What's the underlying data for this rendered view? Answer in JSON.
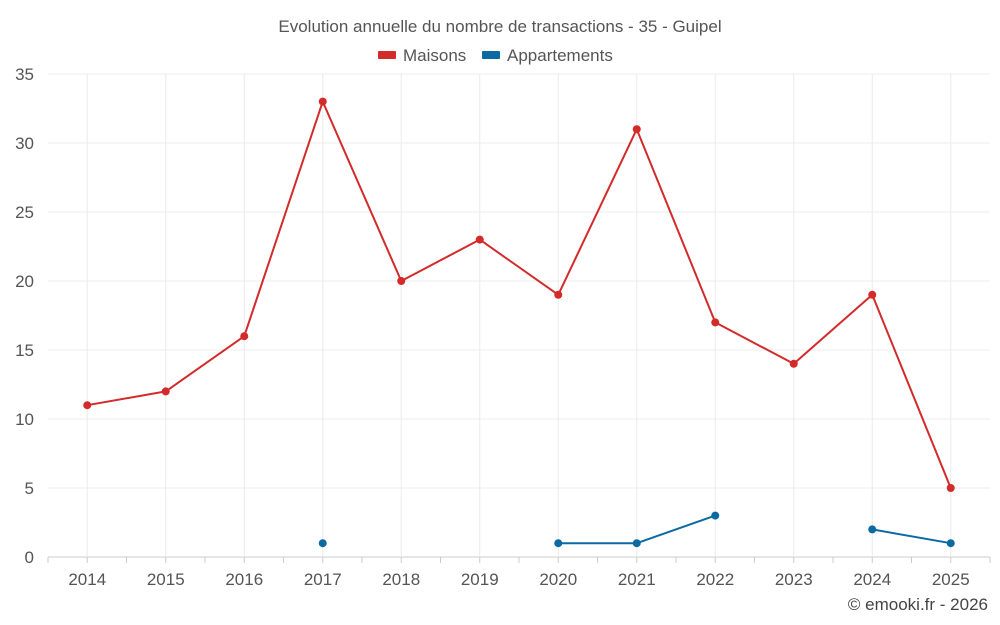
{
  "chart_data": {
    "type": "line",
    "title": "Evolution annuelle du nombre de transactions - 35 - Guipel",
    "categories": [
      "2014",
      "2015",
      "2016",
      "2017",
      "2018",
      "2019",
      "2020",
      "2021",
      "2022",
      "2023",
      "2024",
      "2025"
    ],
    "ylim": [
      0,
      35
    ],
    "yticks": [
      0,
      5,
      10,
      15,
      20,
      25,
      30,
      35
    ],
    "grid": true,
    "legend_position": "top-center",
    "series": [
      {
        "name": "Maisons",
        "color": "#d32a2a",
        "values": [
          11,
          12,
          16,
          33,
          20,
          23,
          19,
          31,
          17,
          14,
          19,
          5
        ]
      },
      {
        "name": "Appartements",
        "color": "#0a6aa1",
        "values": [
          null,
          null,
          null,
          1,
          null,
          null,
          1,
          1,
          3,
          null,
          2,
          1
        ]
      }
    ]
  },
  "credit": "© emooki.fr - 2026"
}
